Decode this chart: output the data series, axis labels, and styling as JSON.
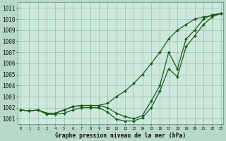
{
  "title": "Graphe pression niveau de la mer (hPa)",
  "bg_color": "#b8d8c8",
  "plot_bg_color": "#cce8dc",
  "line_color": "#1a5c1a",
  "grid_color": "#98bfaa",
  "xlim_min": -0.3,
  "xlim_max": 23.3,
  "ylim_min": 1000.5,
  "ylim_max": 1011.5,
  "yticks": [
    1001,
    1002,
    1003,
    1004,
    1005,
    1006,
    1007,
    1008,
    1009,
    1010,
    1011
  ],
  "xticks": [
    0,
    1,
    2,
    3,
    4,
    5,
    6,
    7,
    8,
    9,
    10,
    11,
    12,
    13,
    14,
    15,
    16,
    17,
    18,
    19,
    20,
    21,
    22,
    23
  ],
  "hours": [
    0,
    1,
    2,
    3,
    4,
    5,
    6,
    7,
    8,
    9,
    10,
    11,
    12,
    13,
    14,
    15,
    16,
    17,
    18,
    19,
    20,
    21,
    22,
    23
  ],
  "lineA": [
    1001.8,
    1001.7,
    1001.8,
    1001.5,
    1001.5,
    1001.8,
    1002.1,
    1002.2,
    1002.2,
    1002.2,
    1002.4,
    1003.0,
    1003.5,
    1004.2,
    1005.0,
    1006.0,
    1007.0,
    1008.2,
    1009.0,
    1009.5,
    1010.0,
    1010.2,
    1010.3,
    1010.5
  ],
  "lineB": [
    1001.8,
    1001.7,
    1001.8,
    1001.5,
    1001.5,
    1001.8,
    1002.1,
    1002.2,
    1002.2,
    1002.2,
    1002.0,
    1001.5,
    1001.2,
    1001.0,
    1001.3,
    1002.6,
    1004.0,
    1007.0,
    1005.5,
    1008.2,
    1009.0,
    1010.0,
    1010.4,
    1010.5
  ],
  "lineC": [
    1001.8,
    1001.7,
    1001.8,
    1001.4,
    1001.4,
    1001.5,
    1001.8,
    1002.0,
    1002.0,
    1002.0,
    1001.6,
    1000.95,
    1000.8,
    1000.8,
    1001.1,
    1002.0,
    1003.5,
    1005.5,
    1004.8,
    1007.5,
    1008.5,
    1009.5,
    1010.2,
    1010.5
  ]
}
